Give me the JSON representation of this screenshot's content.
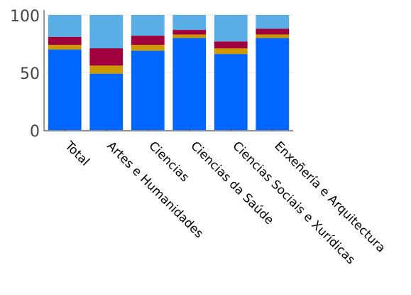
{
  "chart_data": {
    "type": "bar",
    "stacked": true,
    "categories": [
      "Total",
      "Artes e Humanidades",
      "Ciencias",
      "Ciencias da Saúde",
      "Ciencias Sociais e Xurídicas",
      "Enxeñería e Arquitectura"
    ],
    "series": [
      {
        "color": "#0066ff",
        "values": [
          70,
          49,
          69,
          80,
          66,
          80
        ]
      },
      {
        "color": "#cc9900",
        "values": [
          4,
          7,
          5,
          3,
          5,
          3
        ]
      },
      {
        "color": "#a0003c",
        "values": [
          7,
          15,
          8,
          4,
          6,
          5
        ]
      },
      {
        "color": "#5aaee6",
        "values": [
          19,
          29,
          18,
          13,
          23,
          12
        ]
      }
    ],
    "ylim": [
      0,
      100
    ],
    "yticks": [
      "0",
      "50",
      "100"
    ],
    "grid": true,
    "legend": "none"
  }
}
